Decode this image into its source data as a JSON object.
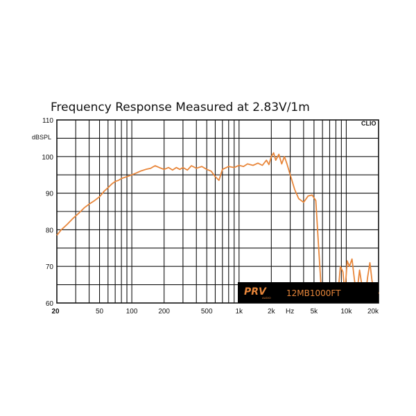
{
  "chart_data": {
    "type": "line",
    "title": "Frequency Response Measured at 2.83V/1m",
    "ylabel": "dBSPL",
    "xlabel": "Hz",
    "corner_label": "CLIO",
    "x_scale": "log",
    "xlim": [
      20,
      20000
    ],
    "ylim": [
      60,
      110
    ],
    "grid": true,
    "x_tick_labels": [
      {
        "value": 20,
        "label": "20"
      },
      {
        "value": 50,
        "label": "50"
      },
      {
        "value": 100,
        "label": "100"
      },
      {
        "value": 200,
        "label": "200"
      },
      {
        "value": 500,
        "label": "500"
      },
      {
        "value": 1000,
        "label": "1k"
      },
      {
        "value": 2000,
        "label": "2k"
      },
      {
        "value": 5000,
        "label": "5k"
      },
      {
        "value": 10000,
        "label": "10k"
      },
      {
        "value": 20000,
        "label": "20k"
      }
    ],
    "y_tick_labels": [
      {
        "value": 60,
        "label": "60"
      },
      {
        "value": 70,
        "label": "70"
      },
      {
        "value": 80,
        "label": "80"
      },
      {
        "value": 90,
        "label": "90"
      },
      {
        "value": 100,
        "label": "100"
      },
      {
        "value": 110,
        "label": "110"
      }
    ],
    "series_color": "#e8863a",
    "series": [
      {
        "x": [
          20,
          22,
          25,
          28,
          32,
          36,
          40,
          45,
          50,
          55,
          60,
          65,
          70,
          75,
          80,
          90,
          100,
          110,
          120,
          135,
          150,
          165,
          180,
          200,
          220,
          240,
          260,
          280,
          300,
          330,
          360,
          400,
          450,
          500,
          550,
          600,
          650,
          700,
          800,
          900,
          1000,
          1100,
          1200,
          1350,
          1500,
          1650,
          1800,
          1900,
          2000,
          2100,
          2200,
          2350,
          2500,
          2650,
          2800,
          3000,
          3300,
          3600,
          4000,
          4400,
          4800,
          5200,
          5500,
          5800,
          6000,
          6300,
          6700,
          7200,
          7800,
          8300,
          8800,
          9300,
          9700,
          10200,
          10700,
          11300,
          11900,
          12500,
          13300,
          14200,
          15000,
          15800,
          16600,
          17400,
          18200,
          19100,
          20000
        ],
        "y": [
          78.5,
          80,
          81.5,
          83,
          84.5,
          86,
          87,
          88,
          89,
          90.5,
          91.5,
          92.5,
          93.2,
          93.5,
          94,
          94.5,
          95,
          95.5,
          96,
          96.5,
          96.8,
          97.5,
          97,
          96.5,
          97,
          96.3,
          97,
          96.5,
          97,
          96.3,
          97.5,
          96.8,
          97.3,
          96.5,
          96,
          94.5,
          93.5,
          96.5,
          97.3,
          97,
          97.6,
          97.3,
          98,
          97.6,
          98.2,
          97.6,
          99,
          97.8,
          100,
          101,
          99,
          100.6,
          98,
          100,
          98,
          95,
          91,
          88.5,
          87.5,
          89.2,
          89.5,
          88,
          76,
          65,
          63.5,
          65.5,
          64.5,
          62,
          64,
          61,
          70,
          68.5,
          62.5,
          71.5,
          70,
          72,
          66.5,
          62,
          69,
          63.5,
          61.5,
          67,
          71,
          66,
          63,
          64.5,
          62.5
        ]
      }
    ]
  },
  "overlay": {
    "brand_logo": "PRV",
    "brand_sub": "AUDIO",
    "model": "12MB1000FT"
  }
}
